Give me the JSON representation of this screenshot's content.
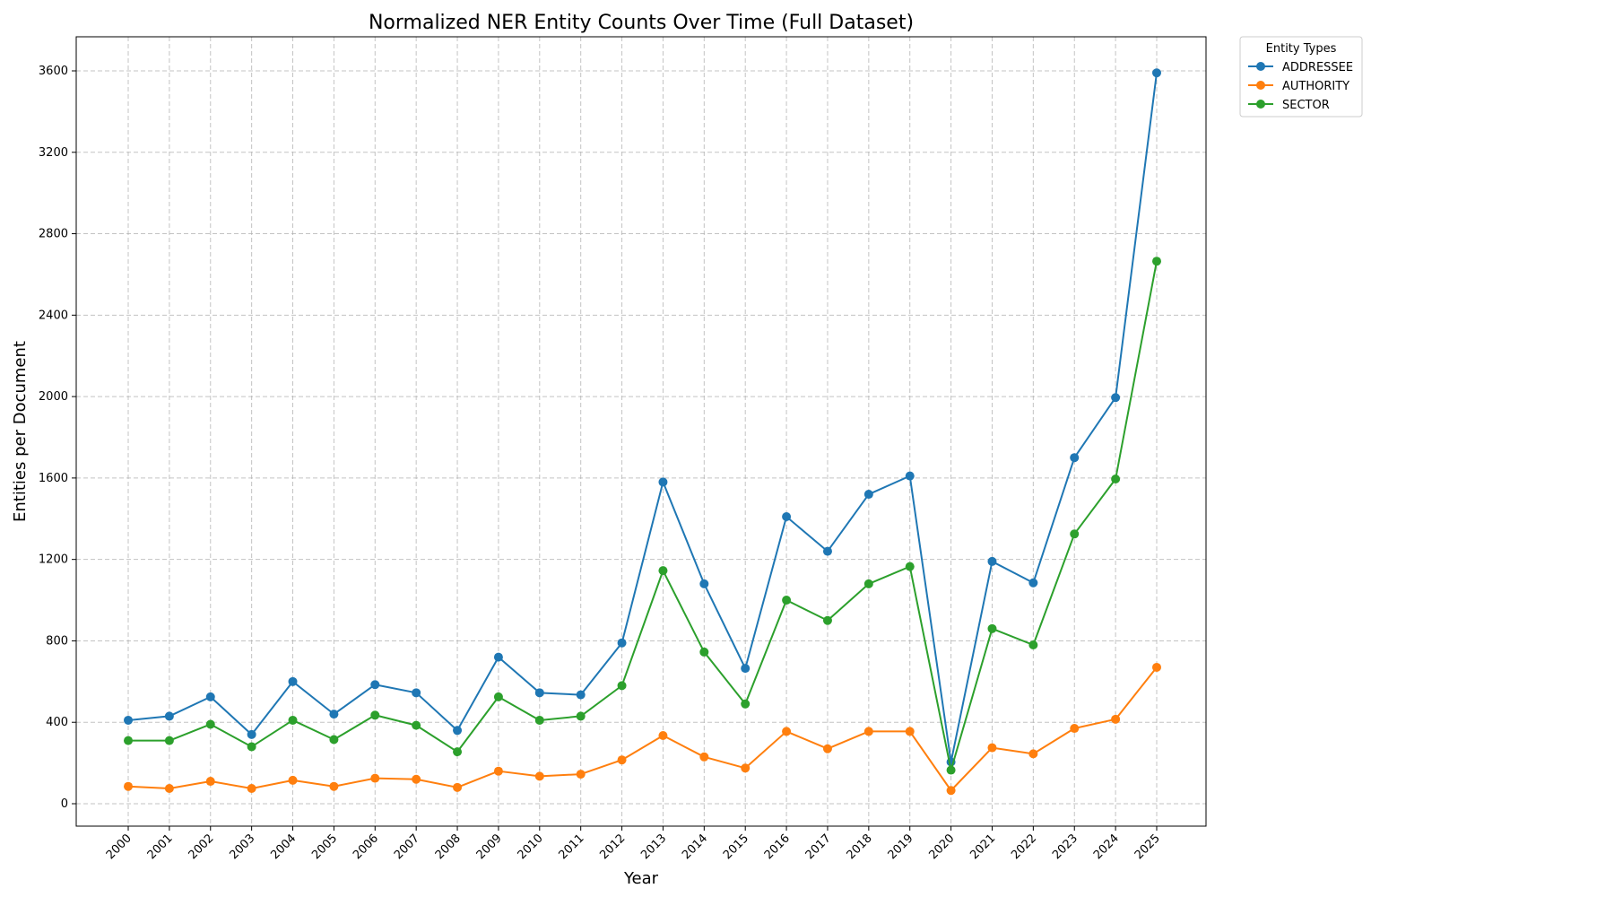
{
  "chart_data": {
    "type": "line",
    "title": "Normalized NER Entity Counts Over Time (Full Dataset)",
    "xlabel": "Year",
    "ylabel": "Entities per Document",
    "categories": [
      "2000",
      "2001",
      "2002",
      "2003",
      "2004",
      "2005",
      "2006",
      "2007",
      "2008",
      "2009",
      "2010",
      "2011",
      "2012",
      "2013",
      "2014",
      "2015",
      "2016",
      "2017",
      "2018",
      "2019",
      "2020",
      "2021",
      "2022",
      "2023",
      "2024",
      "2025"
    ],
    "ylim": [
      -115,
      3760
    ],
    "yticks": [
      0,
      400,
      800,
      1200,
      1600,
      2000,
      2400,
      2800,
      3200,
      3600
    ],
    "grid": true,
    "legend_title": "Entity Types",
    "legend_position": "outside-top-right",
    "series": [
      {
        "name": "ADDRESSEE",
        "color": "#1f77b4",
        "values": [
          410,
          430,
          525,
          340,
          600,
          440,
          585,
          545,
          360,
          720,
          545,
          535,
          790,
          1580,
          1080,
          665,
          1410,
          1240,
          1520,
          1610,
          205,
          1190,
          1085,
          1700,
          1995,
          3590
        ]
      },
      {
        "name": "AUTHORITY",
        "color": "#ff7f0e",
        "values": [
          85,
          75,
          110,
          75,
          115,
          85,
          125,
          120,
          80,
          160,
          135,
          145,
          215,
          335,
          230,
          175,
          355,
          270,
          355,
          355,
          65,
          275,
          245,
          370,
          415,
          670
        ]
      },
      {
        "name": "SECTOR",
        "color": "#2ca02c",
        "values": [
          310,
          310,
          390,
          280,
          410,
          315,
          435,
          385,
          255,
          525,
          410,
          430,
          580,
          1145,
          745,
          490,
          1000,
          900,
          1080,
          1165,
          165,
          860,
          780,
          1325,
          1595,
          2665
        ]
      }
    ]
  }
}
